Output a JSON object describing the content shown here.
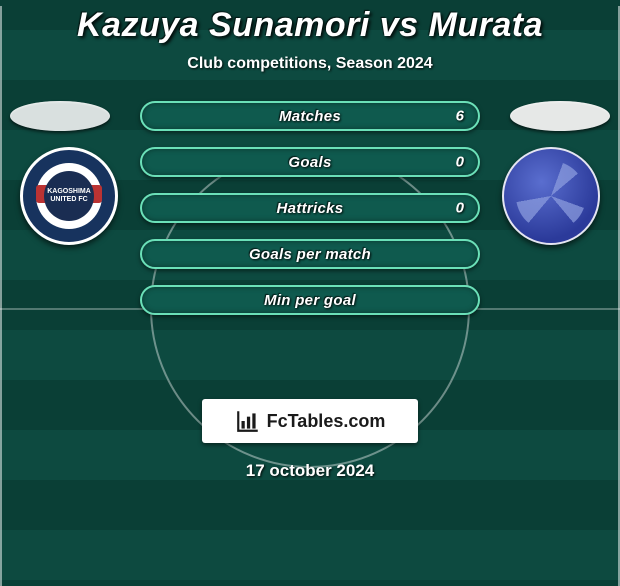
{
  "title": "Kazuya Sunamori vs Murata",
  "subtitle": "Club competitions, Season 2024",
  "date": "17 october 2024",
  "branding_text": "FcTables.com",
  "colors": {
    "player_left_oval": "#d9e0df",
    "player_right_oval": "#e6e8e7",
    "stat_border": "#6be0b8",
    "stat_fill": "#0f5a4e",
    "badge_left_primary": "#17335e",
    "badge_right_primary": "#2b3a9a"
  },
  "club_left_inner_text": "KAGOSHIMA UNITED FC",
  "stats": [
    {
      "label": "Matches",
      "value": "6"
    },
    {
      "label": "Goals",
      "value": "0"
    },
    {
      "label": "Hattricks",
      "value": "0"
    },
    {
      "label": "Goals per match",
      "value": ""
    },
    {
      "label": "Min per goal",
      "value": ""
    }
  ]
}
